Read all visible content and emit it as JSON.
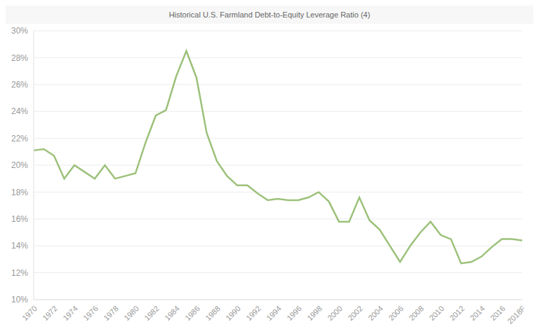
{
  "chart_data": {
    "type": "line",
    "title": "Historical U.S. Farmland Debt-to-Equity Leverage Ratio (4)",
    "categories": [
      "1970",
      null,
      "1972",
      null,
      "1974",
      null,
      "1976",
      null,
      "1978",
      null,
      "1980",
      null,
      "1982",
      null,
      "1984",
      null,
      "1986",
      null,
      "1988",
      null,
      "1990",
      null,
      "1992",
      null,
      "1994",
      null,
      "1996",
      null,
      "1998",
      null,
      "2000",
      null,
      "2002",
      null,
      "2004",
      null,
      "2006",
      null,
      "2008",
      null,
      "2010",
      null,
      "2012",
      null,
      "2014",
      null,
      "2016",
      null,
      "2018F"
    ],
    "values": [
      21.1,
      21.2,
      20.7,
      19.0,
      20.0,
      19.5,
      19.0,
      20.0,
      19.0,
      19.2,
      19.4,
      21.7,
      23.7,
      24.1,
      26.6,
      28.5,
      26.5,
      22.4,
      20.3,
      19.2,
      18.5,
      18.5,
      17.9,
      17.4,
      17.5,
      17.4,
      17.4,
      17.6,
      18.0,
      17.3,
      15.8,
      15.8,
      17.6,
      15.9,
      15.2,
      14.0,
      12.8,
      14.0,
      15.0,
      15.8,
      14.8,
      14.5,
      12.7,
      12.8,
      13.2,
      13.9,
      14.5,
      14.5,
      14.4
    ],
    "color": "#9cc17a",
    "ylim": [
      10,
      30
    ],
    "yticks": [
      {
        "value": 10,
        "label": "10%"
      },
      {
        "value": 12,
        "label": "12%"
      },
      {
        "value": 14,
        "label": "14%"
      },
      {
        "value": 16,
        "label": "16%"
      },
      {
        "value": 18,
        "label": "18%"
      },
      {
        "value": 20,
        "label": "20%"
      },
      {
        "value": 22,
        "label": "22%"
      },
      {
        "value": 24,
        "label": "24%"
      },
      {
        "value": 26,
        "label": "26%"
      },
      {
        "value": 28,
        "label": "28%"
      },
      {
        "value": 30,
        "label": "30%"
      }
    ],
    "grid": true
  }
}
